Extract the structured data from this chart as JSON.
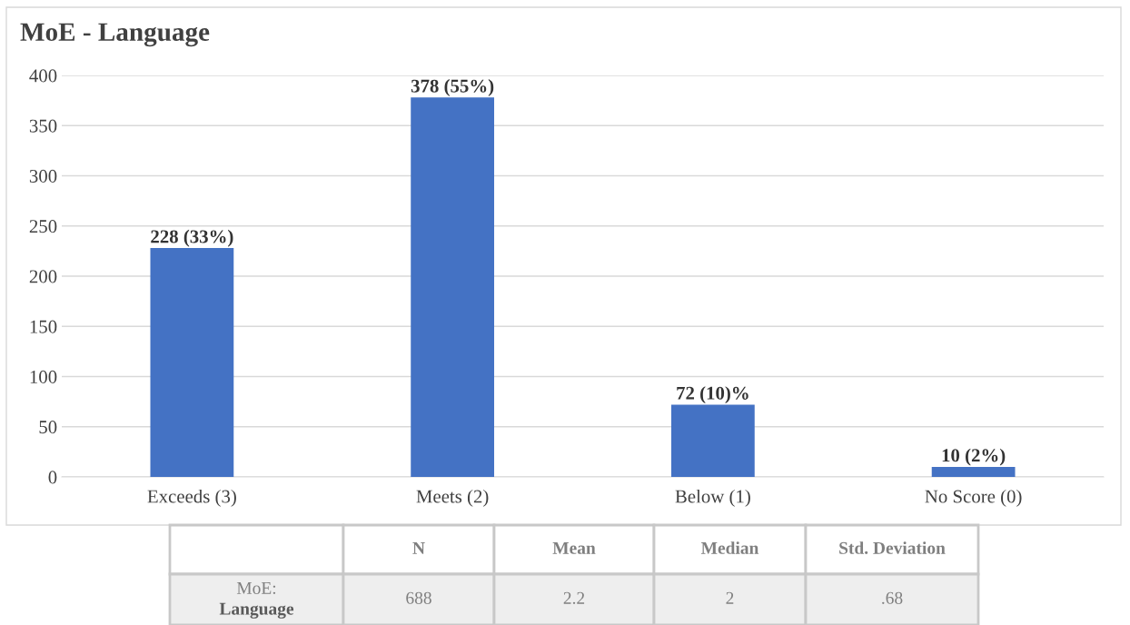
{
  "chart_data": {
    "type": "bar",
    "title": "MoE - Language",
    "categories": [
      "Exceeds (3)",
      "Meets (2)",
      "Below (1)",
      "No Score (0)"
    ],
    "values": [
      228,
      378,
      72,
      10
    ],
    "value_labels": [
      "228 (33%)",
      "378 (55%)",
      "72 (10)%",
      "10 (2%)"
    ],
    "color": "#4472c4",
    "ylim": [
      0,
      400
    ],
    "yticks": [
      0,
      50,
      100,
      150,
      200,
      250,
      300,
      350,
      400
    ],
    "grid": "y",
    "annotations": [
      "N",
      "Mean",
      "Median",
      "Std. Deviation",
      "MoE:\nLanguage",
      "688",
      "2.2",
      "2",
      ".68"
    ]
  }
}
